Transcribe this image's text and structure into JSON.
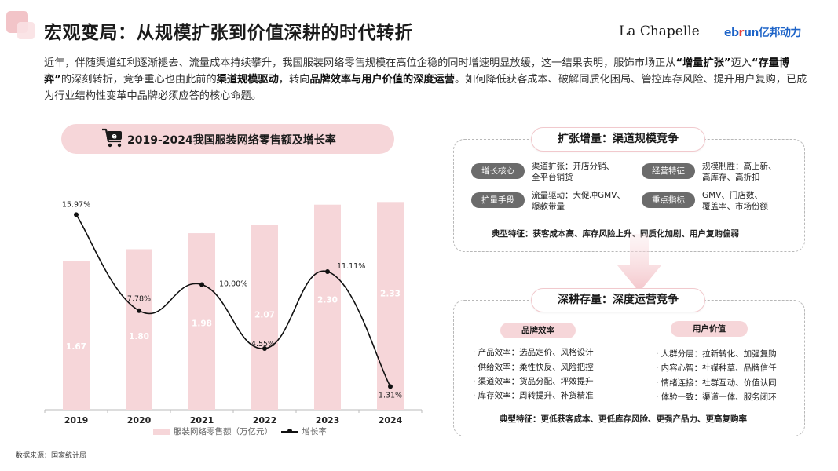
{
  "header": {
    "title": "宏观变局：从规模扩张到价值深耕的时代转折",
    "brand_la_chapelle": "La Chapelle",
    "brand_ebrun_prefix": "eb",
    "brand_ebrun_o": "r",
    "brand_ebrun_suffix": "un亿邦动力"
  },
  "intro": {
    "p1": "近年，伴随渠道红利逐渐褪去、流量成本持续攀升，我国服装网络零售规模在高位企稳的同时增速明显放缓，这一结果表明，服饰市场正从",
    "b1": "“增量扩张”",
    "p2": "迈入",
    "b2": "“存量博弈”",
    "p3": "的深刻转折，竞争重心也由此前的",
    "b3": "渠道规模驱动",
    "p4": "，转向",
    "b4": "品牌效率与用户价值的深度运营",
    "p5": "。如何降低获客成本、破解同质化困局、管控库存风险、提升用户复购，已成为行业结构性变革中品牌必须应答的核心命题。"
  },
  "chart_title": "2019-2024我国服装网络零售额及增长率",
  "chart_data": {
    "type": "bar",
    "categories": [
      "2019",
      "2020",
      "2021",
      "2022",
      "2023",
      "2024"
    ],
    "series": [
      {
        "name": "服装网络零售额（万亿元）",
        "type": "bar",
        "values": [
          1.67,
          1.8,
          1.98,
          2.07,
          2.3,
          2.33
        ],
        "labels": [
          "1.67",
          "1.80",
          "1.98",
          "2.07",
          "2.30",
          "2.33"
        ],
        "color": "#f6d6d9"
      },
      {
        "name": "增长率",
        "type": "line",
        "values": [
          15.97,
          7.78,
          10.0,
          4.55,
          11.11,
          1.31
        ],
        "labels": [
          "15.97%",
          "7.78%",
          "10.00%",
          "4.55%",
          "11.11%",
          "1.31%"
        ],
        "color": "#111111"
      }
    ],
    "ylim_bar": [
      0,
      2.5
    ],
    "ylim_line": [
      0,
      18
    ],
    "smooth_line": true
  },
  "legend": {
    "bar_label": "服装网络零售额（万亿元）",
    "line_label": "增长率"
  },
  "source": "数据来源：国家统计局",
  "expansion": {
    "title": "扩张增量：渠道规模竞争",
    "tags": [
      {
        "tag": "增长核心",
        "desc1": "渠道扩张：开店分销、",
        "desc2": "全平台铺货"
      },
      {
        "tag": "扩量手段",
        "desc1": "流量驱动：大促冲GMV、",
        "desc2": "爆款带量"
      },
      {
        "tag": "经营特征",
        "desc1": "规模制胜：高上新、",
        "desc2": "高库存、高折扣"
      },
      {
        "tag": "重点指标",
        "desc1": "GMV、门店数、",
        "desc2": "覆盖率、市场份额"
      }
    ],
    "feature": "典型特征：获客成本高、库存风险上升、同质化加剧、用户复购偏弱"
  },
  "deepening": {
    "title": "深耕存量：深度运营竞争",
    "brand_title": "品牌效率",
    "user_title": "用户价值",
    "brand_items": [
      "· 产品效率：选品定价、风格设计",
      "· 供给效率：柔性快反、风险把控",
      "· 渠道效率：货品分配、坪效提升",
      "· 库存效率：周转提升、补货精准"
    ],
    "user_items": [
      "· 人群分层：拉新转化、加强复购",
      "· 内容心智：社媒种草、品牌信任",
      "· 情绪连接：社群互动、价值认同",
      "· 体验一致：渠道一体、服务闭环"
    ],
    "feature": "典型特征：更低获客成本、更低库存风险、更强产品力、更高复购率"
  }
}
